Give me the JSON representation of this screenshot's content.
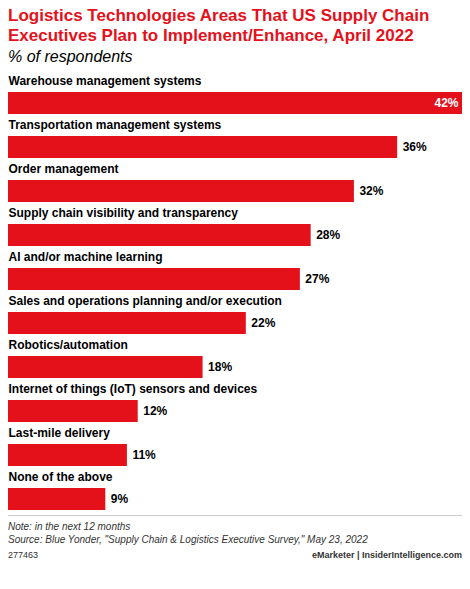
{
  "chart_data": {
    "type": "bar",
    "orientation": "horizontal",
    "title": "Logistics Technologies Areas That US Supply Chain Executives Plan to Implement/Enhance, April 2022",
    "subtitle": "% of respondents",
    "categories": [
      "Warehouse management systems",
      "Transportation management systems",
      "Order management",
      "Supply chain visibility and transparency",
      "AI and/or machine learning",
      "Sales and operations planning and/or execution",
      "Robotics/automation",
      "Internet of things (IoT) sensors and devices",
      "Last-mile delivery",
      "None of the above"
    ],
    "values": [
      42,
      36,
      32,
      28,
      27,
      22,
      18,
      12,
      11,
      9
    ],
    "value_labels": [
      "42%",
      "36%",
      "32%",
      "28%",
      "27%",
      "22%",
      "18%",
      "12%",
      "11%",
      "9%"
    ],
    "data_labels": true,
    "tick_labels": false,
    "grid": false,
    "color": "#e4111b",
    "notes": [
      "Note: in the next 12 months",
      "Source: Blue Yonder, \"Supply Chain & Logistics Executive Survey,\" May 23, 2022"
    ],
    "chart_id": "277463",
    "branding": "eMarketer | InsiderIntelligence.com"
  }
}
